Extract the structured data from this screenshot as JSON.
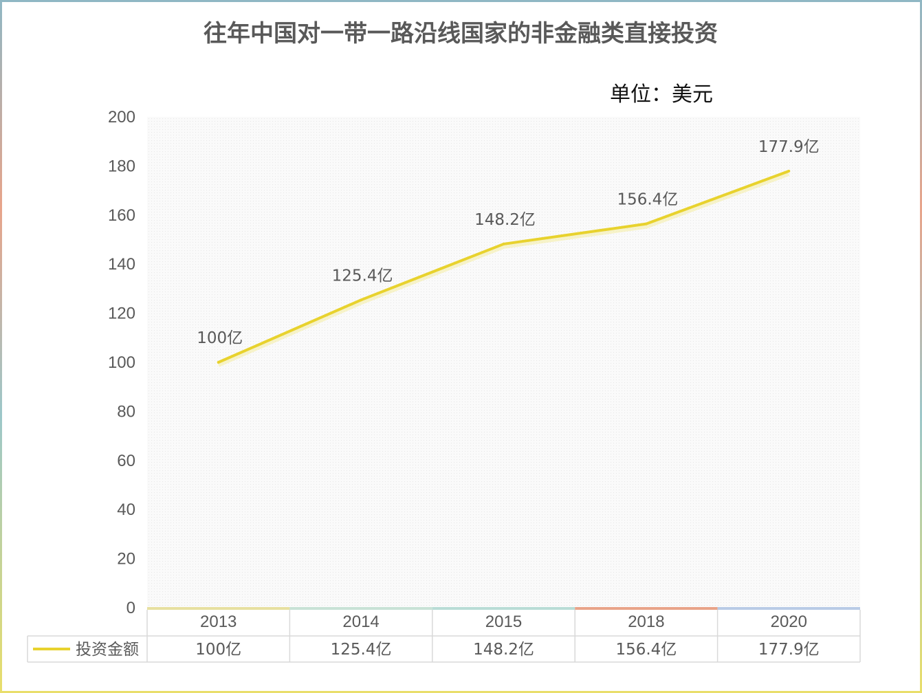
{
  "chart_data": {
    "type": "line",
    "title": "往年中国对一带一路沿线国家的非金融类直接投资",
    "unit_label": "单位：美元",
    "categories": [
      "2013",
      "2014",
      "2015",
      "2018",
      "2020"
    ],
    "series": [
      {
        "name": "投资金额",
        "values": [
          100,
          125.4,
          148.2,
          156.4,
          177.9
        ],
        "data_labels": [
          "100亿",
          "125.4亿",
          "148.2亿",
          "156.4亿",
          "177.9亿"
        ]
      }
    ],
    "yticks": [
      "0",
      "20",
      "40",
      "60",
      "80",
      "100",
      "120",
      "140",
      "160",
      "180",
      "200"
    ],
    "ylim": [
      0,
      200
    ],
    "line_color": "#e8d22e",
    "data_table": true,
    "grid": false
  }
}
